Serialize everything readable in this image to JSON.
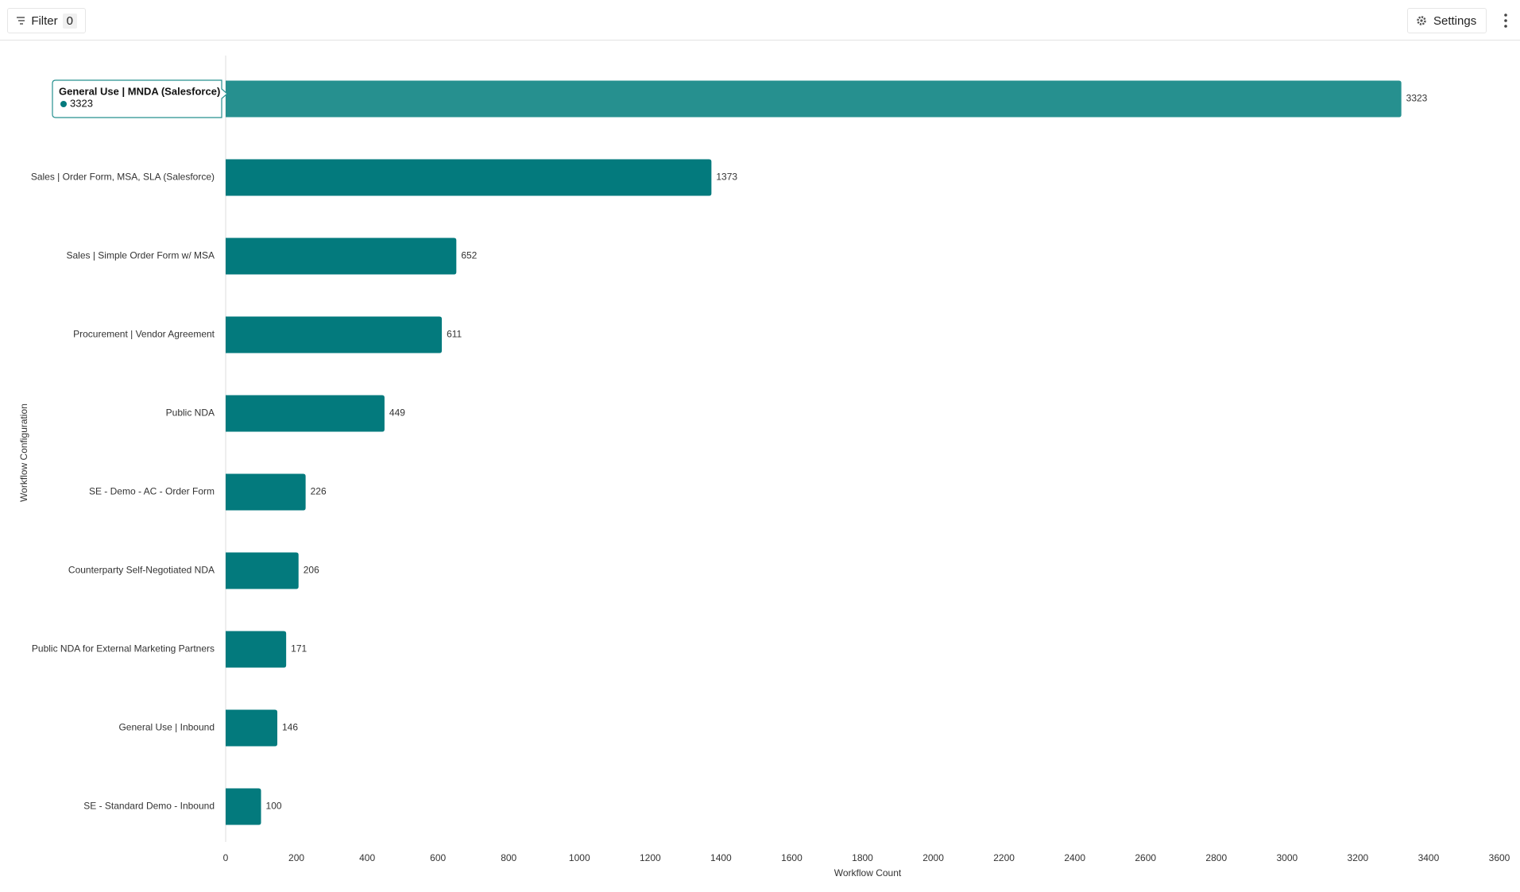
{
  "toolbar": {
    "filter": "Filter",
    "filter_count": "0",
    "settings": "Settings"
  },
  "chart_data": {
    "type": "bar",
    "orientation": "horizontal",
    "categories": [
      "General Use | MNDA (Salesforce)",
      "Sales | Order Form, MSA, SLA (Salesforce)",
      "Sales | Simple Order Form w/ MSA",
      "Procurement | Vendor Agreement",
      "Public NDA",
      "SE - Demo - AC - Order Form",
      "Counterparty Self-Negotiated NDA",
      "Public NDA for External Marketing Partners",
      "General Use | Inbound",
      "SE - Standard Demo - Inbound"
    ],
    "values": [
      3323,
      1373,
      652,
      611,
      449,
      226,
      206,
      171,
      146,
      100
    ],
    "color": "#037a7d",
    "highlight_color": "#26908f",
    "x_label": "Workflow Count",
    "y_label": "Workflow Configuration",
    "xlim": [
      0,
      3600
    ],
    "xticks": [
      0,
      200,
      400,
      600,
      800,
      1000,
      1200,
      1400,
      1600,
      1800,
      2000,
      2200,
      2400,
      2600,
      2800,
      3000,
      3200,
      3400,
      3600
    ]
  }
}
